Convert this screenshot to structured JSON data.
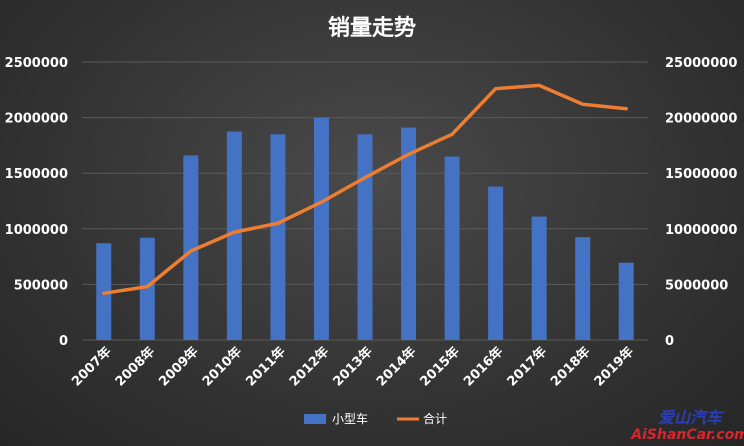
{
  "chart_data": {
    "type": "bar",
    "title": "销量走势",
    "categories": [
      "2007年",
      "2008年",
      "2009年",
      "2010年",
      "2011年",
      "2012年",
      "2013年",
      "2014年",
      "2015年",
      "2016年",
      "2017年",
      "2018年",
      "2019年"
    ],
    "series": [
      {
        "name": "小型车",
        "type": "bar",
        "axis": "left",
        "color": "#4472c4",
        "values": [
          870000,
          920000,
          1660000,
          1875000,
          1850000,
          2000000,
          1850000,
          1910000,
          1650000,
          1380000,
          1110000,
          925000,
          695000
        ]
      },
      {
        "name": "合计",
        "type": "line",
        "axis": "right",
        "color": "#ed7d31",
        "values": [
          4200000,
          4800000,
          8000000,
          9700000,
          10500000,
          12400000,
          14600000,
          16700000,
          18500000,
          22600000,
          22900000,
          21200000,
          20800000
        ]
      }
    ],
    "left_axis": {
      "ylim": [
        0,
        2500000
      ],
      "ticks": [
        "0",
        "500000",
        "1000000",
        "1500000",
        "2000000",
        "2500000"
      ]
    },
    "right_axis": {
      "ylim": [
        0,
        25000000
      ],
      "ticks": [
        "0",
        "5000000",
        "10000000",
        "15000000",
        "20000000",
        "25000000"
      ]
    },
    "grid": true,
    "legend_position": "bottom"
  },
  "watermark": {
    "line1": "爱山汽车",
    "line2": "AiShanCar.com"
  }
}
